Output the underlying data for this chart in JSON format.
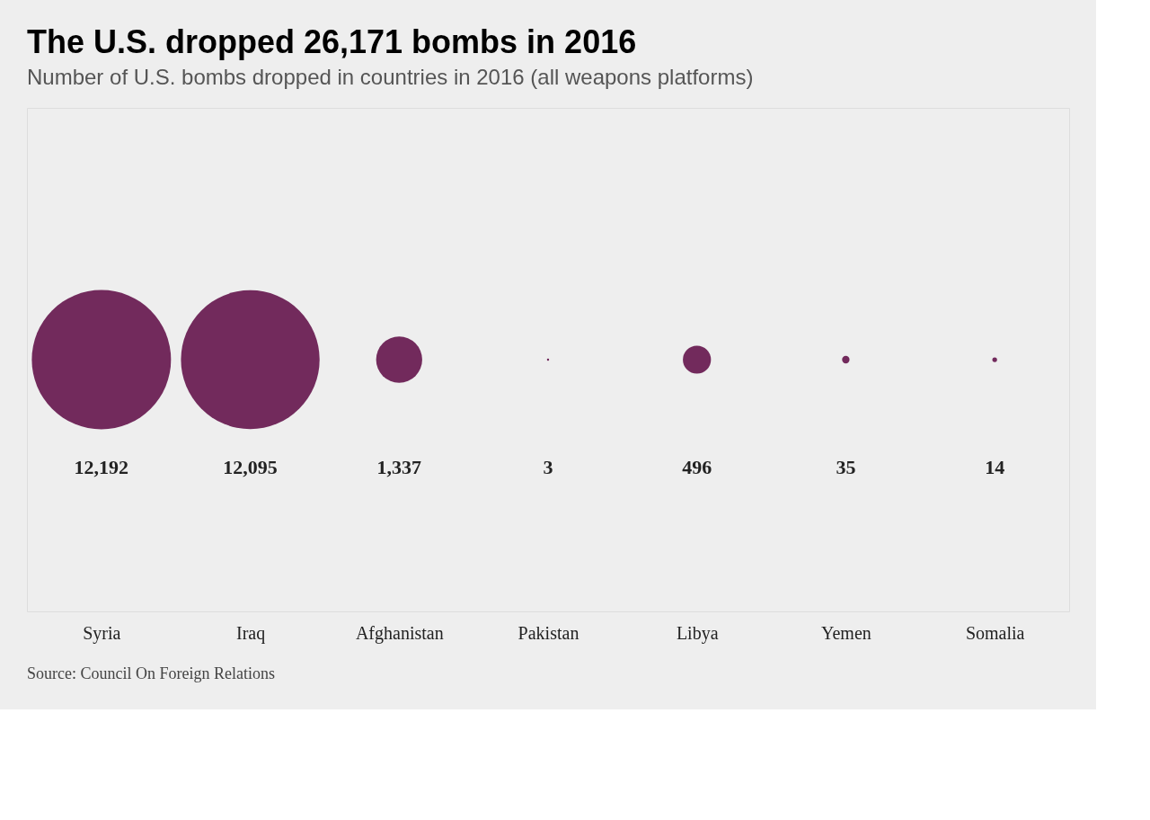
{
  "chart_data": {
    "type": "other",
    "title": "The U.S. dropped 26,171 bombs in 2016",
    "subtitle": "Number of U.S. bombs dropped in countries in 2016 (all weapons platforms)",
    "categories": [
      "Syria",
      "Iraq",
      "Afghanistan",
      "Pakistan",
      "Libya",
      "Yemen",
      "Somalia"
    ],
    "values": [
      12192,
      12095,
      1337,
      3,
      496,
      35,
      14
    ],
    "value_labels": [
      "12,192",
      "12,095",
      "1,337",
      "3",
      "496",
      "35",
      "14"
    ],
    "color": "#5c0742",
    "annotations": [
      "Source: Council On Foreign Relations"
    ]
  }
}
